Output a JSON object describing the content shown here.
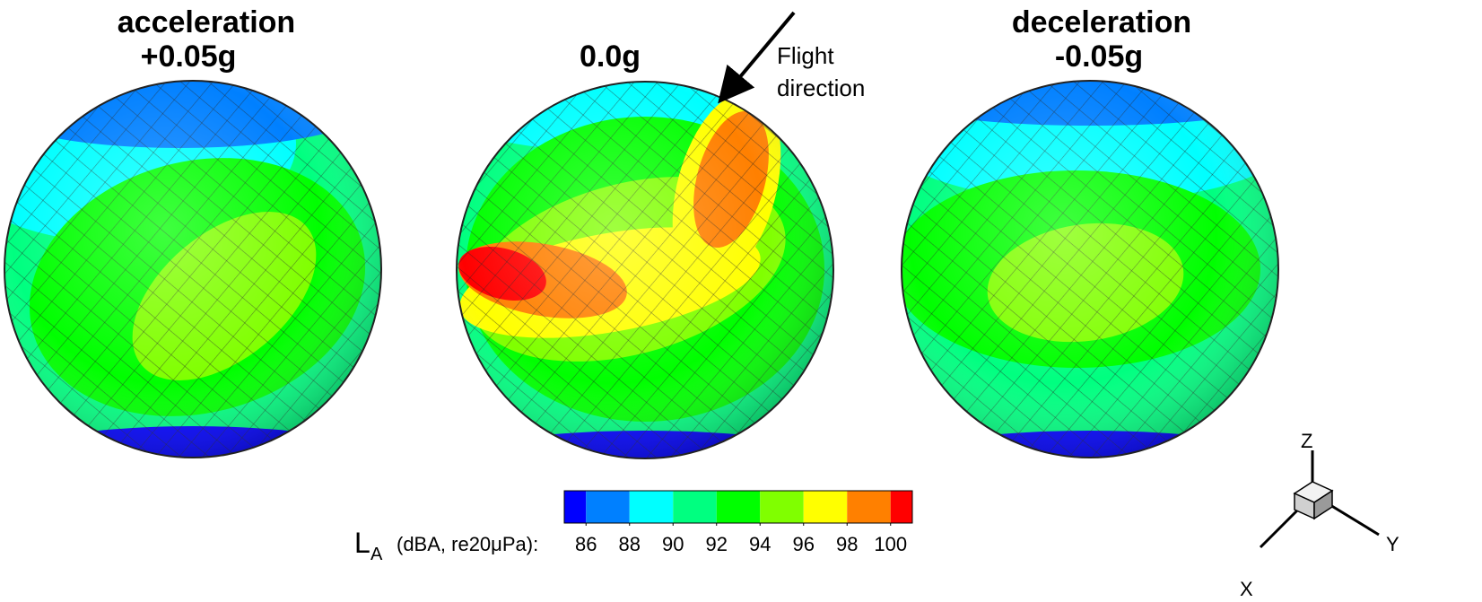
{
  "panels": [
    {
      "title": [
        "acceleration",
        "+0.05g"
      ]
    },
    {
      "title": [
        "0.0g"
      ]
    },
    {
      "title": [
        "deceleration",
        "-0.05g"
      ]
    }
  ],
  "annotation": [
    "Flight",
    "direction"
  ],
  "colorbar": {
    "label": "L",
    "label_subscript": "A",
    "label_units": "(dBA, re20μPa):",
    "levels": [
      85,
      86,
      88,
      90,
      92,
      94,
      96,
      98,
      100,
      101
    ],
    "colors": [
      "#0000ff",
      "#0080ff",
      "#00ffff",
      "#00ff80",
      "#00ff00",
      "#80ff00",
      "#ffff00",
      "#ff8000",
      "#ff0000"
    ],
    "ticks": [
      86,
      88,
      90,
      92,
      94,
      96,
      98,
      100
    ]
  },
  "axes": [
    "Z",
    "X",
    "Y"
  ]
}
